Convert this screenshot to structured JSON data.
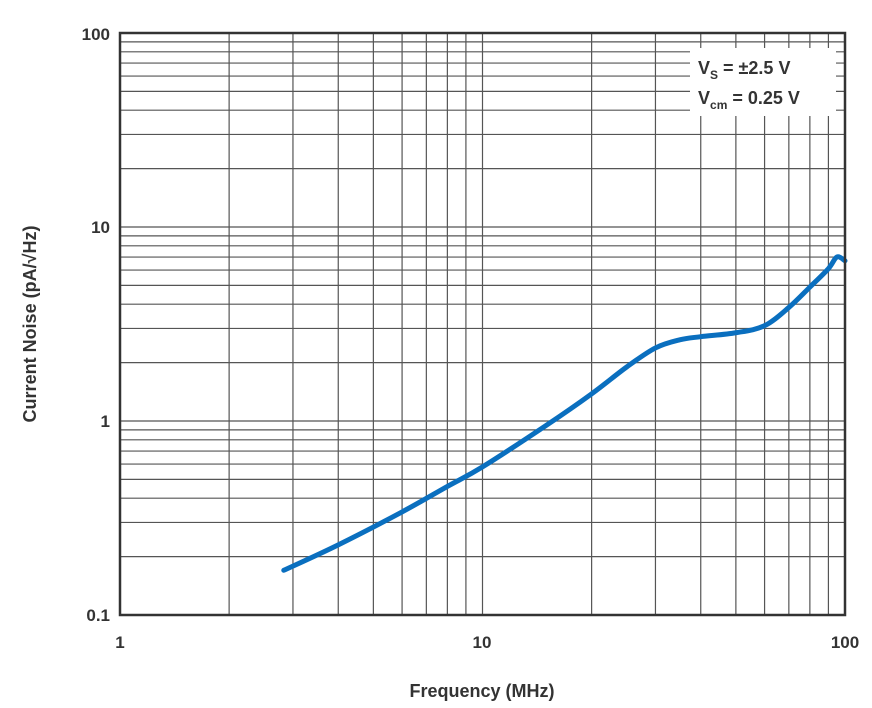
{
  "chart_data": {
    "type": "line",
    "xlabel": "Frequency (MHz)",
    "ylabel": "Current Noise (pA/√Hz)",
    "xscale": "log",
    "yscale": "log",
    "xlim": [
      1,
      100
    ],
    "ylim": [
      0.1,
      100
    ],
    "xticks": [
      "1",
      "10",
      "100"
    ],
    "yticks": [
      "0.1",
      "1",
      "10",
      "100"
    ],
    "grid": true,
    "legend_position": "top-right",
    "annotations": [
      {
        "main": "V",
        "sub": "S",
        "rest": " = ±2.5 V"
      },
      {
        "main": "V",
        "sub": "cm",
        "rest": " = 0.25 V"
      }
    ],
    "series": [
      {
        "color": "#0a6fbf",
        "x": [
          2.83,
          4,
          6,
          8,
          10,
          15,
          20,
          25,
          30,
          35,
          40,
          50,
          60,
          70,
          80,
          90,
          95,
          100
        ],
        "y": [
          0.17,
          0.23,
          0.34,
          0.46,
          0.58,
          0.95,
          1.38,
          1.9,
          2.38,
          2.62,
          2.72,
          2.85,
          3.1,
          3.85,
          4.9,
          6.1,
          7.0,
          6.7
        ]
      }
    ]
  }
}
